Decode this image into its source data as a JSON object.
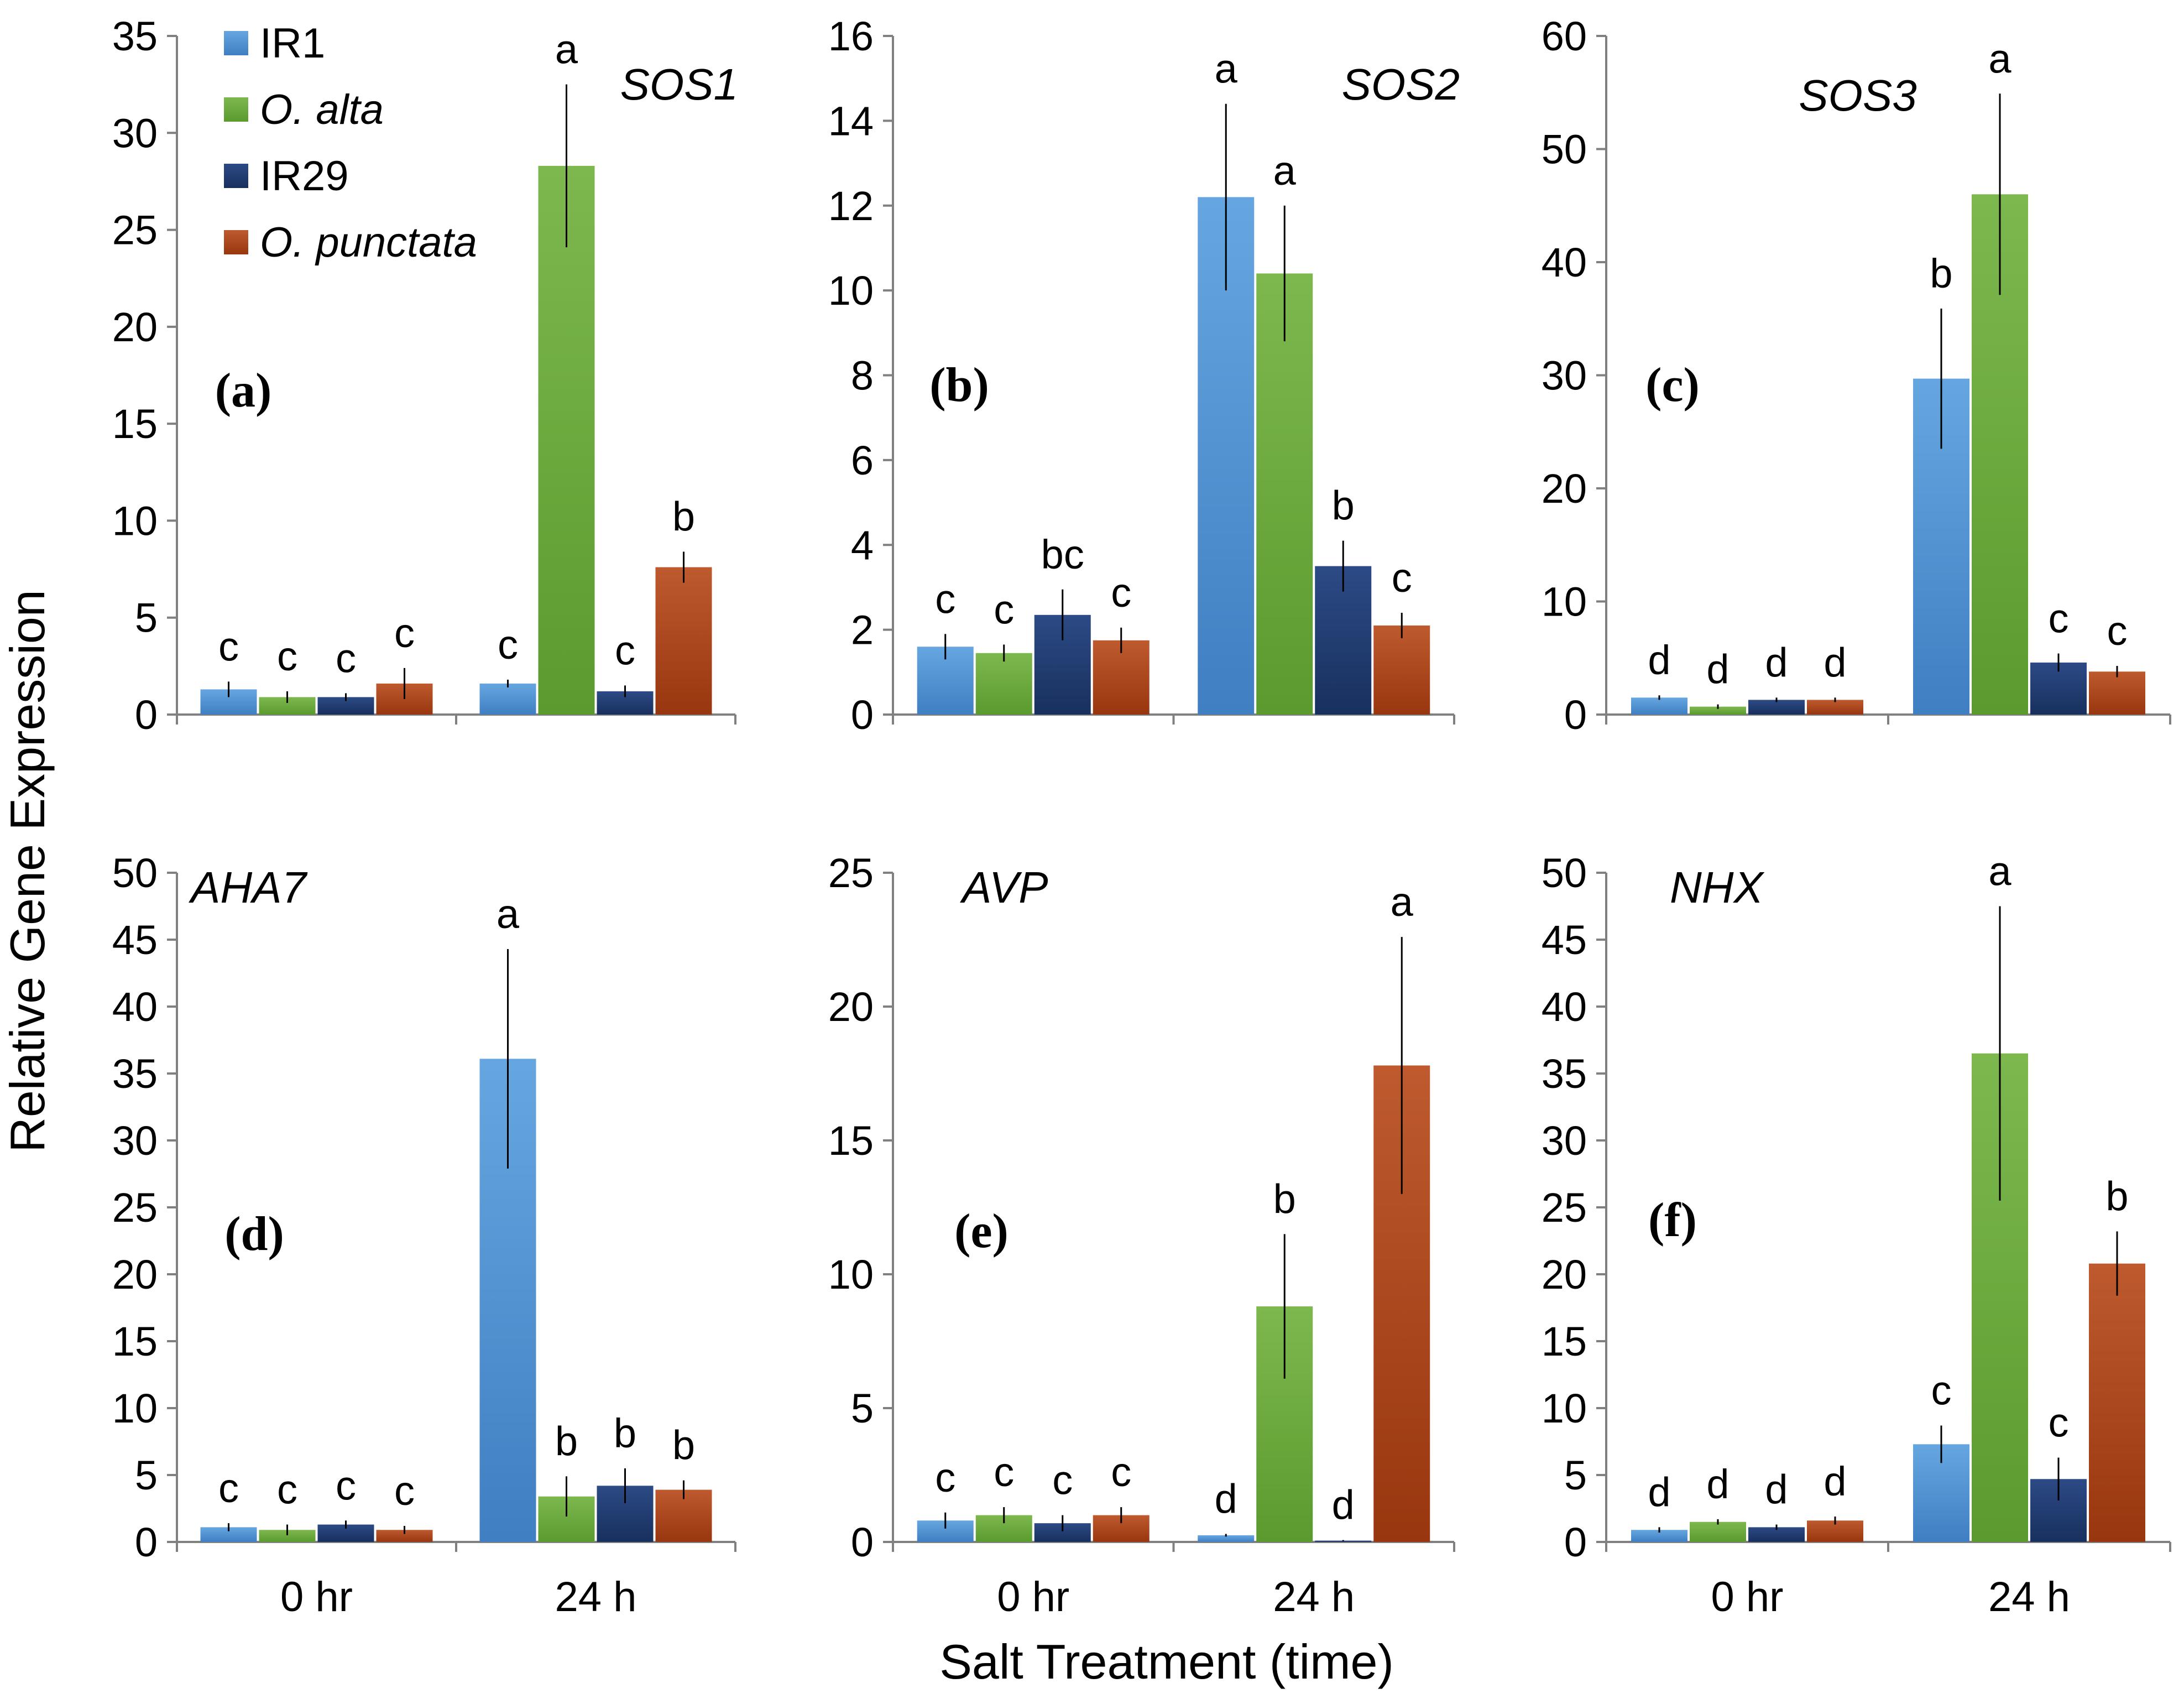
{
  "figure": {
    "y_axis_label": "Relative Gene Expression",
    "x_axis_label": "Salt Treatment (time)"
  },
  "legend": [
    {
      "label": "IR1",
      "italic": false,
      "color": "#5A9BD8"
    },
    {
      "label": "O. alta",
      "italic": true,
      "color": "#76B041"
    },
    {
      "label": "IR29",
      "italic": false,
      "color": "#1F3A70"
    },
    {
      "label": "O. punctata",
      "italic": true,
      "color": "#B0421B"
    }
  ],
  "chart_data": [
    {
      "type": "bar",
      "panel_label": "(a)",
      "gene": "SOS1",
      "categories": [
        "0 hr",
        "24 h"
      ],
      "ylim": [
        0,
        35
      ],
      "yticks": [
        0,
        5,
        10,
        15,
        20,
        25,
        30,
        35
      ],
      "show_category_labels": false,
      "series": [
        {
          "name": "IR1",
          "values": [
            1.3,
            1.6
          ],
          "errors": [
            0.4,
            0.2
          ],
          "letters": [
            "c",
            "c"
          ]
        },
        {
          "name": "O. alta",
          "values": [
            0.9,
            28.3
          ],
          "errors": [
            0.3,
            4.2
          ],
          "letters": [
            "c",
            "a"
          ]
        },
        {
          "name": "IR29",
          "values": [
            0.9,
            1.2
          ],
          "errors": [
            0.2,
            0.3
          ],
          "letters": [
            "c",
            "c"
          ]
        },
        {
          "name": "O. punctata",
          "values": [
            1.6,
            7.6
          ],
          "errors": [
            0.8,
            0.8
          ],
          "letters": [
            "c",
            "b"
          ]
        }
      ]
    },
    {
      "type": "bar",
      "panel_label": "(b)",
      "gene": "SOS2",
      "categories": [
        "0 hr",
        "24 h"
      ],
      "ylim": [
        0,
        16
      ],
      "yticks": [
        0,
        2,
        4,
        6,
        8,
        10,
        12,
        14,
        16
      ],
      "show_category_labels": false,
      "series": [
        {
          "name": "IR1",
          "values": [
            1.6,
            12.2
          ],
          "errors": [
            0.3,
            2.2
          ],
          "letters": [
            "c",
            "a"
          ]
        },
        {
          "name": "O. alta",
          "values": [
            1.45,
            10.4
          ],
          "errors": [
            0.2,
            1.6
          ],
          "letters": [
            "c",
            "a"
          ]
        },
        {
          "name": "IR29",
          "values": [
            2.35,
            3.5
          ],
          "errors": [
            0.6,
            0.6
          ],
          "letters": [
            "bc",
            "b"
          ]
        },
        {
          "name": "O. punctata",
          "values": [
            1.75,
            2.1
          ],
          "errors": [
            0.3,
            0.3
          ],
          "letters": [
            "c",
            "c"
          ]
        }
      ]
    },
    {
      "type": "bar",
      "panel_label": "(c)",
      "gene": "SOS3",
      "categories": [
        "0 hr",
        "24 h"
      ],
      "ylim": [
        0,
        60
      ],
      "yticks": [
        0,
        10,
        20,
        30,
        40,
        50,
        60
      ],
      "show_category_labels": false,
      "series": [
        {
          "name": "IR1",
          "values": [
            1.5,
            29.7
          ],
          "errors": [
            0.2,
            6.2
          ],
          "letters": [
            "d",
            "b"
          ]
        },
        {
          "name": "O. alta",
          "values": [
            0.7,
            46.0
          ],
          "errors": [
            0.2,
            8.9
          ],
          "letters": [
            "d",
            "a"
          ]
        },
        {
          "name": "IR29",
          "values": [
            1.3,
            4.6
          ],
          "errors": [
            0.2,
            0.8
          ],
          "letters": [
            "d",
            "c"
          ]
        },
        {
          "name": "O. punctata",
          "values": [
            1.3,
            3.8
          ],
          "errors": [
            0.2,
            0.5
          ],
          "letters": [
            "d",
            "c"
          ]
        }
      ]
    },
    {
      "type": "bar",
      "panel_label": "(d)",
      "gene": "AHA7",
      "categories": [
        "0 hr",
        "24 h"
      ],
      "ylim": [
        0,
        50
      ],
      "yticks": [
        0,
        5,
        10,
        15,
        20,
        25,
        30,
        35,
        40,
        45,
        50
      ],
      "show_category_labels": true,
      "series": [
        {
          "name": "IR1",
          "values": [
            1.1,
            36.1
          ],
          "errors": [
            0.3,
            8.2
          ],
          "letters": [
            "c",
            "a"
          ]
        },
        {
          "name": "O. alta",
          "values": [
            0.9,
            3.4
          ],
          "errors": [
            0.4,
            1.5
          ],
          "letters": [
            "c",
            "b"
          ]
        },
        {
          "name": "IR29",
          "values": [
            1.3,
            4.2
          ],
          "errors": [
            0.3,
            1.3
          ],
          "letters": [
            "c",
            "b"
          ]
        },
        {
          "name": "O. punctata",
          "values": [
            0.9,
            3.9
          ],
          "errors": [
            0.3,
            0.7
          ],
          "letters": [
            "c",
            "b"
          ]
        }
      ]
    },
    {
      "type": "bar",
      "panel_label": "(e)",
      "gene": "AVP",
      "categories": [
        "0 hr",
        "24 h"
      ],
      "ylim": [
        0,
        25
      ],
      "yticks": [
        0,
        5,
        10,
        15,
        20,
        25
      ],
      "show_category_labels": true,
      "series": [
        {
          "name": "IR1",
          "values": [
            0.8,
            0.25
          ],
          "errors": [
            0.3,
            0.05
          ],
          "letters": [
            "c",
            "d"
          ]
        },
        {
          "name": "O. alta",
          "values": [
            1.0,
            8.8
          ],
          "errors": [
            0.3,
            2.7
          ],
          "letters": [
            "c",
            "b"
          ]
        },
        {
          "name": "IR29",
          "values": [
            0.7,
            0.05
          ],
          "errors": [
            0.3,
            0.02
          ],
          "letters": [
            "c",
            "d"
          ]
        },
        {
          "name": "O. punctata",
          "values": [
            1.0,
            17.8
          ],
          "errors": [
            0.3,
            4.8
          ],
          "letters": [
            "c",
            "a"
          ]
        }
      ]
    },
    {
      "type": "bar",
      "panel_label": "(f)",
      "gene": "NHX",
      "categories": [
        "0 hr",
        "24 h"
      ],
      "ylim": [
        0,
        50
      ],
      "yticks": [
        0,
        5,
        10,
        15,
        20,
        25,
        30,
        35,
        40,
        45,
        50
      ],
      "show_category_labels": true,
      "series": [
        {
          "name": "IR1",
          "values": [
            0.9,
            7.3
          ],
          "errors": [
            0.2,
            1.4
          ],
          "letters": [
            "d",
            "c"
          ]
        },
        {
          "name": "O. alta",
          "values": [
            1.5,
            36.5
          ],
          "errors": [
            0.2,
            11.0
          ],
          "letters": [
            "d",
            "a"
          ]
        },
        {
          "name": "IR29",
          "values": [
            1.1,
            4.7
          ],
          "errors": [
            0.2,
            1.6
          ],
          "letters": [
            "d",
            "c"
          ]
        },
        {
          "name": "O. punctata",
          "values": [
            1.6,
            20.8
          ],
          "errors": [
            0.3,
            2.4
          ],
          "letters": [
            "d",
            "b"
          ]
        }
      ]
    }
  ]
}
